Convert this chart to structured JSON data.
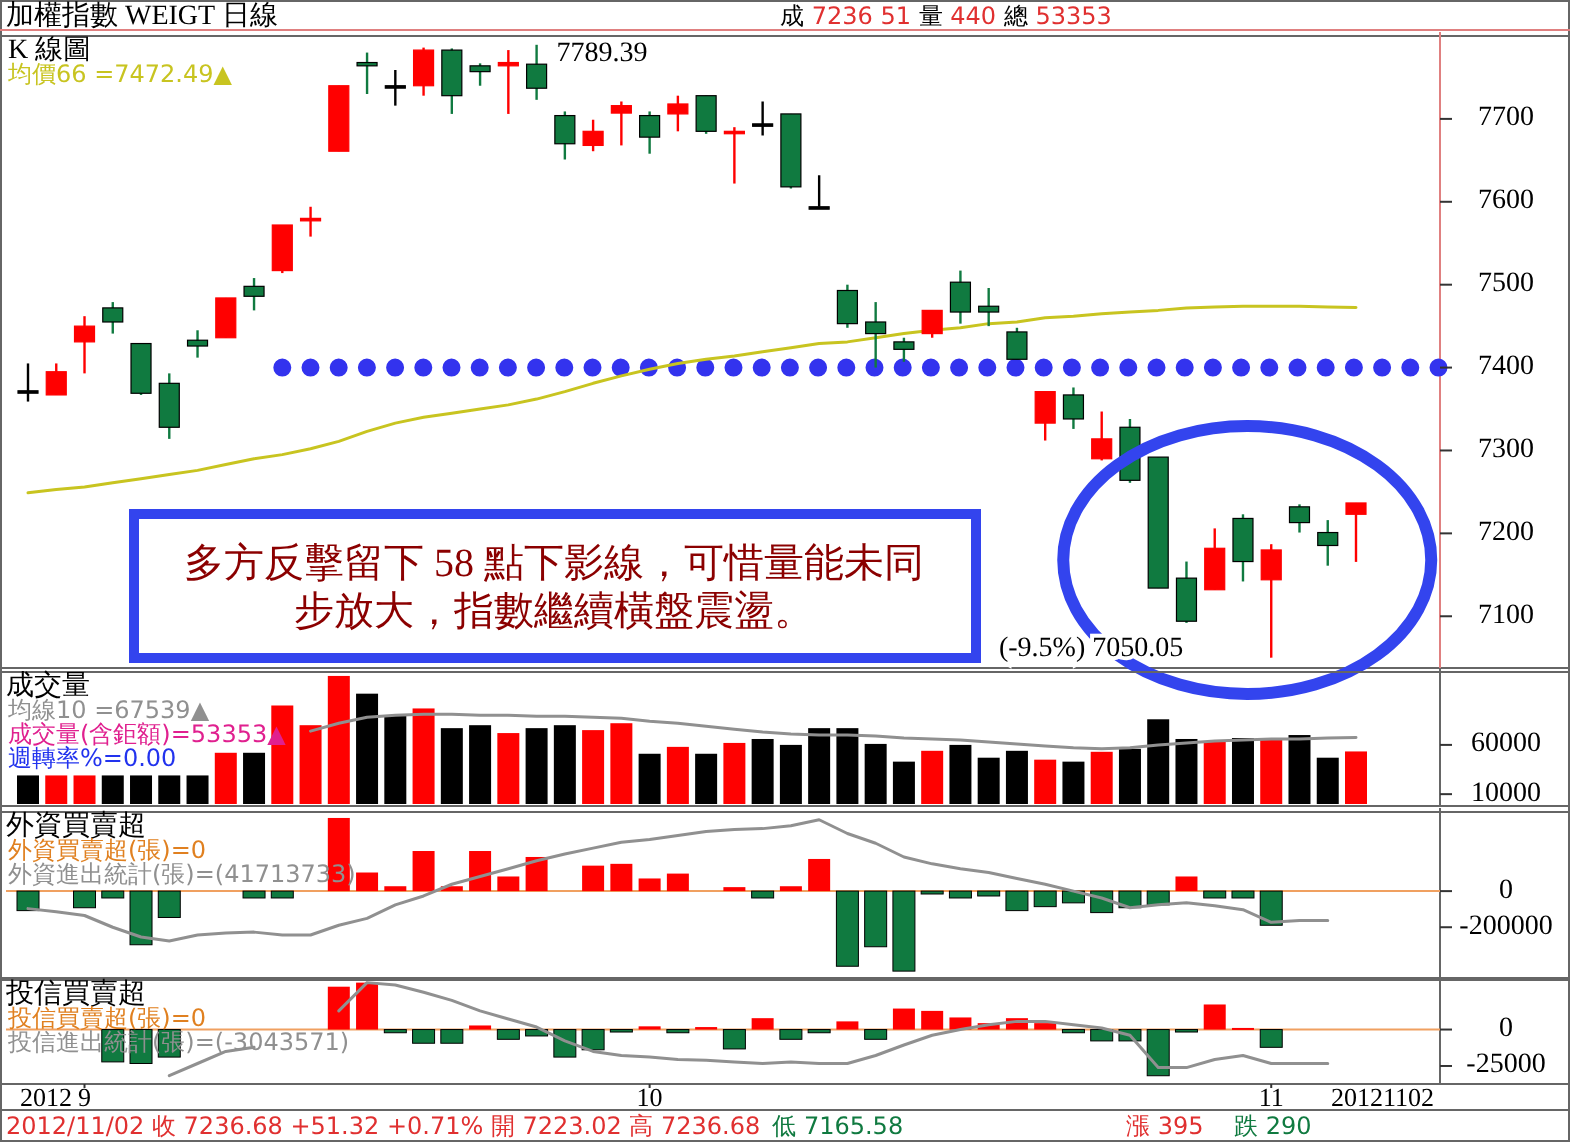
{
  "chart_data": [
    {
      "type": "candlestick",
      "title": "加權指數 WEIGT 日線",
      "subtitle": "K 線圖",
      "legend": "top left",
      "tick_labels": "y",
      "categories": [
        null,
        null,
        null,
        null,
        null,
        null,
        null,
        null,
        null,
        null,
        null,
        null,
        null,
        null,
        null,
        null,
        null,
        null,
        null,
        null,
        null,
        null,
        null,
        null,
        null,
        null,
        null,
        null,
        null,
        null,
        null,
        null,
        null,
        null,
        null,
        null,
        null,
        null,
        null,
        null,
        null,
        null,
        null,
        null,
        null,
        null,
        null,
        null
      ],
      "ohlc": [
        [
          7372,
          7405,
          7359,
          7372
        ],
        [
          7367,
          7405,
          7367,
          7395
        ],
        [
          7431,
          7462,
          7393,
          7450
        ],
        [
          7472,
          7479,
          7441,
          7455
        ],
        [
          7429,
          7429,
          7367,
          7369
        ],
        [
          7381,
          7393,
          7314,
          7328
        ],
        [
          7433,
          7445,
          7412,
          7426
        ],
        [
          7436,
          7484,
          7436,
          7484
        ],
        [
          7498,
          7508,
          7469,
          7486
        ],
        [
          7517,
          7572,
          7514,
          7572
        ],
        [
          7577,
          7594,
          7558,
          7580
        ],
        [
          7661,
          7740,
          7661,
          7740
        ],
        [
          7768,
          7780,
          7730,
          7764
        ],
        [
          7740,
          7759,
          7716,
          7740
        ],
        [
          7740,
          7786,
          7728,
          7783
        ],
        [
          7783,
          7785,
          7706,
          7728
        ],
        [
          7764,
          7767,
          7740,
          7757
        ],
        [
          7764,
          7783,
          7706,
          7768
        ],
        [
          7766,
          7789.39,
          7723,
          7737
        ],
        [
          7704,
          7709,
          7651,
          7670
        ],
        [
          7668,
          7699,
          7661,
          7685
        ],
        [
          7707,
          7721,
          7668,
          7716
        ],
        [
          7704,
          7709,
          7658,
          7678
        ],
        [
          7706,
          7728,
          7685,
          7718
        ],
        [
          7728,
          7728,
          7682,
          7685
        ],
        [
          7683,
          7690,
          7622,
          7685
        ],
        [
          7694,
          7721,
          7680,
          7694
        ],
        [
          7706,
          7706,
          7616,
          7618
        ],
        [
          7594,
          7632,
          7594,
          7594
        ],
        [
          7493,
          7500,
          7448,
          7453
        ],
        [
          7455,
          7479,
          7400,
          7441
        ],
        [
          7431,
          7436,
          7407,
          7422
        ],
        [
          7441,
          7469,
          7436,
          7469
        ],
        [
          7503,
          7517,
          7453,
          7467
        ],
        [
          7474,
          7496,
          7450,
          7467
        ],
        [
          7443,
          7448,
          7410,
          7410
        ],
        [
          7333,
          7371,
          7312,
          7371
        ],
        [
          7367,
          7376,
          7326,
          7338
        ],
        [
          7290,
          7347,
          7288,
          7314
        ],
        [
          7328,
          7338,
          7261,
          7264
        ],
        [
          7292,
          7292,
          7134,
          7134
        ],
        [
          7146,
          7166,
          7092,
          7094
        ],
        [
          7132,
          7206,
          7132,
          7182
        ],
        [
          7218,
          7223,
          7142,
          7166
        ],
        [
          7144,
          7187,
          7050.05,
          7180
        ],
        [
          7232,
          7235,
          7201,
          7213
        ],
        [
          7201,
          7216,
          7161,
          7185.36
        ],
        [
          7223.02,
          7236.68,
          7165.58,
          7236.68
        ]
      ],
      "colors": [
        "#000000",
        "#ff0000",
        "#ff0000",
        "#107a40",
        "#107a40",
        "#107a40",
        "#107a40",
        "#ff0000",
        "#107a40",
        "#ff0000",
        "#ff0000",
        "#ff0000",
        "#107a40",
        "#000000",
        "#ff0000",
        "#107a40",
        "#107a40",
        "#ff0000",
        "#107a40",
        "#107a40",
        "#ff0000",
        "#ff0000",
        "#107a40",
        "#ff0000",
        "#107a40",
        "#ff0000",
        "#000000",
        "#107a40",
        "#000000",
        "#107a40",
        "#107a40",
        "#107a40",
        "#ff0000",
        "#107a40",
        "#107a40",
        "#107a40",
        "#ff0000",
        "#107a40",
        "#ff0000",
        "#107a40",
        "#107a40",
        "#107a40",
        "#ff0000",
        "#107a40",
        "#ff0000",
        "#107a40",
        "#107a40",
        "#ff0000"
      ],
      "series": [
        {
          "type": "line",
          "name": "均價66 =7472.49▲",
          "color": "#c8c420",
          "values": [
            7249,
            7253,
            7256,
            7261,
            7266,
            7271,
            7276,
            7283,
            7290,
            7295,
            7302,
            7311,
            7323,
            7333,
            7340,
            7345,
            7350,
            7355,
            7362,
            7371,
            7381,
            7390,
            7398,
            7405,
            7410,
            7414,
            7419,
            7424,
            7429,
            7431,
            7436,
            7441,
            7445,
            7448,
            7453,
            7455,
            7460,
            7462,
            7465,
            7467,
            7469,
            7472,
            7473,
            7474,
            7474,
            7474,
            7473,
            7472.49
          ]
        }
      ],
      "ylim": [
        7040,
        7800
      ],
      "yticks": [
        7100,
        7200,
        7300,
        7400,
        7500,
        7600,
        7700
      ],
      "ref_lines": [
        {
          "axis": "y",
          "value": 7400,
          "color": "#3333ee",
          "line_style": "dotted"
        }
      ],
      "annotations": [
        "成 7236 51 量 440 總 53353",
        "多方反擊留下 58 點下影線，可惜量能未同步放大，指數繼續橫盤震盪。",
        "7789.39",
        "(-9.5%) 7050.05"
      ]
    },
    {
      "type": "bar",
      "title": "成交量",
      "legend": "top left",
      "tick_labels": "y",
      "categories": [
        null,
        null,
        null,
        null,
        null,
        null,
        null,
        null,
        null,
        null,
        null,
        null,
        null,
        null,
        null,
        null,
        null,
        null,
        null,
        null,
        null,
        null,
        null,
        null,
        null,
        null,
        null,
        null,
        null,
        null,
        null,
        null,
        null,
        null,
        null,
        null,
        null,
        null,
        null,
        null,
        null,
        null,
        null,
        null,
        null,
        null,
        null,
        null
      ],
      "series": [
        {
          "type": "line",
          "name": "均線10 =67539▲",
          "color": "#909090",
          "values": [
            null,
            null,
            null,
            null,
            null,
            null,
            null,
            null,
            null,
            null,
            74000,
            82000,
            88000,
            90000,
            91000,
            91000,
            90000,
            90000,
            89000,
            89000,
            88000,
            87000,
            84000,
            82000,
            79000,
            76000,
            73000,
            71000,
            70000,
            70000,
            69000,
            67000,
            66000,
            65000,
            63000,
            61000,
            59000,
            57000,
            56000,
            57000,
            60000,
            62000,
            64000,
            65000,
            66000,
            66000,
            67000,
            67539
          ]
        },
        {
          "type": "bar",
          "name": "成交量(含鉅額)=53353▲",
          "values": [
            29000,
            29000,
            29000,
            29000,
            29000,
            29000,
            29000,
            52000,
            52000,
            100000,
            80000,
            130000,
            112000,
            90000,
            97000,
            77000,
            80000,
            72000,
            77000,
            80000,
            75000,
            82000,
            51000,
            58000,
            51000,
            62000,
            66000,
            60000,
            77000,
            77000,
            61000,
            43000,
            54000,
            60000,
            47000,
            54000,
            45000,
            43000,
            53000,
            56000,
            86000,
            66000,
            63000,
            67000,
            67000,
            70000,
            47000,
            53353
          ],
          "colors": [
            "#000000",
            "#ff0000",
            "#ff0000",
            "#000000",
            "#000000",
            "#000000",
            "#000000",
            "#ff0000",
            "#000000",
            "#ff0000",
            "#ff0000",
            "#ff0000",
            "#000000",
            "#000000",
            "#ff0000",
            "#000000",
            "#000000",
            "#ff0000",
            "#000000",
            "#000000",
            "#ff0000",
            "#ff0000",
            "#000000",
            "#ff0000",
            "#000000",
            "#ff0000",
            "#000000",
            "#000000",
            "#000000",
            "#000000",
            "#000000",
            "#000000",
            "#ff0000",
            "#000000",
            "#000000",
            "#000000",
            "#ff0000",
            "#000000",
            "#ff0000",
            "#000000",
            "#000000",
            "#000000",
            "#ff0000",
            "#000000",
            "#ff0000",
            "#000000",
            "#000000",
            "#ff0000"
          ]
        }
      ],
      "ylim": [
        0,
        134000
      ],
      "yticks": [
        10000,
        60000
      ],
      "annotations": [
        "週轉率%=0.00"
      ]
    },
    {
      "type": "bar",
      "title": "外資買賣超",
      "legend": "top left",
      "tick_labels": "y",
      "categories": [
        null,
        null,
        null,
        null,
        null,
        null,
        null,
        null,
        null,
        null,
        null,
        null,
        null,
        null,
        null,
        null,
        null,
        null,
        null,
        null,
        null,
        null,
        null,
        null,
        null,
        null,
        null,
        null,
        null,
        null,
        null,
        null,
        null,
        null,
        null,
        null,
        null,
        null,
        null,
        null,
        null,
        null,
        null,
        null,
        null,
        null,
        null,
        null
      ],
      "series": [
        {
          "type": "bar",
          "name": "外資買賣超(張)=0",
          "values": [
            -108000,
            null,
            -92000,
            -38000,
            -297000,
            -146000,
            null,
            null,
            -38000,
            -38000,
            null,
            405000,
            103000,
            27000,
            222000,
            27000,
            222000,
            81000,
            189000,
            null,
            141000,
            151000,
            70000,
            97000,
            null,
            22000,
            -38000,
            27000,
            178000,
            -416000,
            -308000,
            -443000,
            -16000,
            -38000,
            -27000,
            -108000,
            -86000,
            -65000,
            -119000,
            -92000,
            -76000,
            81000,
            -38000,
            -38000,
            -189000,
            null,
            null,
            null
          ],
          "colors": [
            "#107a40",
            null,
            "#107a40",
            "#107a40",
            "#107a40",
            "#107a40",
            null,
            null,
            "#107a40",
            "#107a40",
            null,
            "#ff0000",
            "#ff0000",
            "#ff0000",
            "#ff0000",
            "#ff0000",
            "#ff0000",
            "#ff0000",
            "#ff0000",
            null,
            "#ff0000",
            "#ff0000",
            "#ff0000",
            "#ff0000",
            null,
            "#ff0000",
            "#107a40",
            "#ff0000",
            "#ff0000",
            "#107a40",
            "#107a40",
            "#107a40",
            "#107a40",
            "#107a40",
            "#107a40",
            "#107a40",
            "#107a40",
            "#107a40",
            "#107a40",
            "#107a40",
            "#107a40",
            "#ff0000",
            "#107a40",
            "#107a40",
            "#107a40",
            null,
            null,
            null
          ]
        },
        {
          "type": "line",
          "name": "外資進出統計(張)=(41713733)",
          "color": "#909090",
          "values": [
            -97000,
            -114000,
            -135000,
            -200000,
            -254000,
            -276000,
            -243000,
            -232000,
            -227000,
            -243000,
            -243000,
            -189000,
            -151000,
            -76000,
            -27000,
            38000,
            81000,
            124000,
            168000,
            205000,
            238000,
            270000,
            286000,
            308000,
            330000,
            341000,
            346000,
            362000,
            395000,
            319000,
            265000,
            189000,
            151000,
            124000,
            103000,
            70000,
            38000,
            0,
            -38000,
            -92000,
            -76000,
            -65000,
            -81000,
            -103000,
            -173000,
            -162000,
            -162000,
            null
          ]
        }
      ],
      "ylim": [
        -470000,
        438000
      ],
      "yticks": [
        0,
        -200000
      ],
      "ref_lines": [
        {
          "axis": "y",
          "value": 0,
          "color": "#f0a060",
          "line_style": "solid"
        }
      ]
    },
    {
      "type": "bar",
      "title": "投信買賣超",
      "legend": "top left",
      "categories": [
        null,
        null,
        "9",
        null,
        null,
        null,
        null,
        null,
        null,
        null,
        null,
        null,
        null,
        null,
        null,
        null,
        null,
        null,
        null,
        null,
        null,
        null,
        "10",
        null,
        null,
        null,
        null,
        null,
        null,
        null,
        null,
        null,
        null,
        null,
        null,
        null,
        null,
        null,
        null,
        null,
        null,
        null,
        null,
        null,
        "11",
        null,
        null,
        null
      ],
      "series": [
        {
          "type": "bar",
          "name": "投信買賣超(張)=0",
          "values": [
            null,
            null,
            null,
            -22200,
            -23300,
            -18900,
            null,
            null,
            null,
            null,
            null,
            29400,
            32200,
            -2200,
            -9400,
            -9400,
            2800,
            -6700,
            -4400,
            -18900,
            -13900,
            -1700,
            2200,
            -2200,
            1700,
            -13300,
            7800,
            -6700,
            -2200,
            5600,
            -6700,
            14400,
            12800,
            8300,
            4400,
            7800,
            4400,
            -2200,
            -7800,
            -7800,
            -31700,
            -1700,
            17200,
            1100,
            -12200,
            null,
            null,
            null
          ],
          "colors": [
            null,
            null,
            null,
            "#107a40",
            "#107a40",
            "#107a40",
            null,
            null,
            null,
            null,
            null,
            "#ff0000",
            "#ff0000",
            "#107a40",
            "#107a40",
            "#107a40",
            "#ff0000",
            "#107a40",
            "#107a40",
            "#107a40",
            "#107a40",
            "#107a40",
            "#ff0000",
            "#107a40",
            "#ff0000",
            "#107a40",
            "#ff0000",
            "#107a40",
            "#107a40",
            "#ff0000",
            "#107a40",
            "#ff0000",
            "#ff0000",
            "#ff0000",
            "#ff0000",
            "#ff0000",
            "#ff0000",
            "#107a40",
            "#107a40",
            "#107a40",
            "#107a40",
            "#107a40",
            "#ff0000",
            "#ff0000",
            "#107a40",
            null,
            null,
            null
          ]
        },
        {
          "type": "line",
          "name": "投信進出統計(張)=(-3043571)",
          "color": "#909090",
          "values": [
            null,
            null,
            null,
            null,
            null,
            -31700,
            -23300,
            -15000,
            -12200,
            null,
            null,
            12800,
            32200,
            30600,
            25600,
            20000,
            12800,
            7200,
            1700,
            -7800,
            -15000,
            -17800,
            -18900,
            -20600,
            -21100,
            -22200,
            -23300,
            -22200,
            -23300,
            -23300,
            -17800,
            -10600,
            -3900,
            0,
            3300,
            5600,
            5600,
            3300,
            1100,
            -3900,
            -26100,
            -26100,
            -20600,
            -17800,
            -23300,
            -23300,
            -23300,
            null
          ]
        }
      ],
      "ylim": [
        -36000,
        34000
      ],
      "yticks": [
        0,
        -25000
      ],
      "ref_lines": [
        {
          "axis": "y",
          "value": 0,
          "color": "#f0a060",
          "line_style": "solid"
        }
      ],
      "annotations": [
        "2012",
        "20121102",
        "2012/11/02 收 7236.68 +51.32 +0.71% 開 7223.02 高 7236.68",
        "低 7165.58",
        "漲 395",
        "跌 290"
      ]
    }
  ]
}
